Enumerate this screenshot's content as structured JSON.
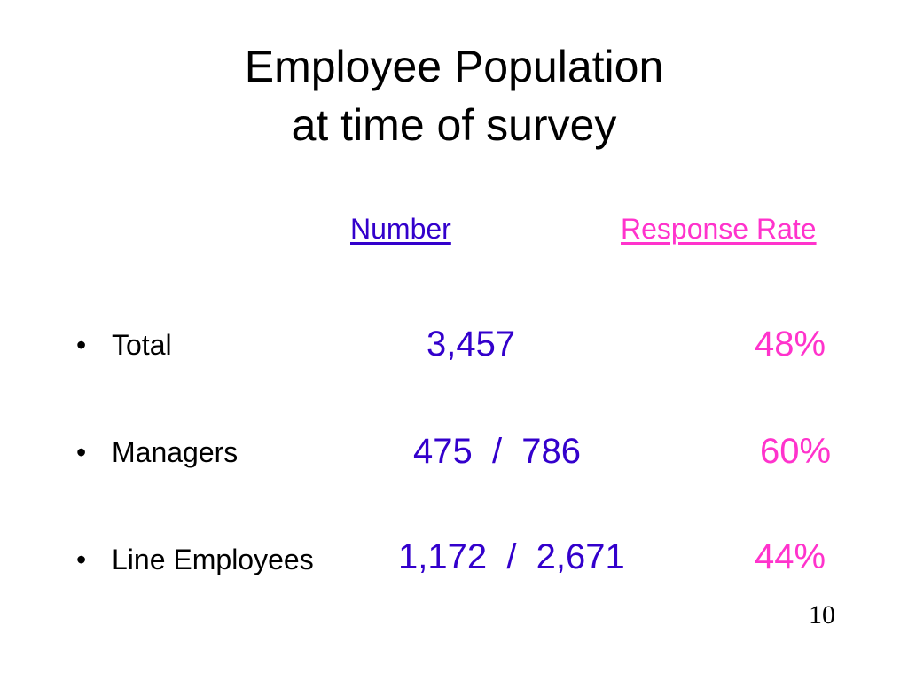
{
  "title": {
    "line1": "Employee Population",
    "line2": "at time of survey"
  },
  "headers": {
    "number": "Number",
    "response_rate": "Response Rate"
  },
  "rows": [
    {
      "label": "Total",
      "number": "3,457",
      "rate": "48%"
    },
    {
      "label": "Managers",
      "number": "475  /  786",
      "rate": "60%"
    },
    {
      "label": "Line Employees",
      "number": "1,172  /  2,671",
      "rate": "44%"
    }
  ],
  "bullet_symbol": "•",
  "page_number": "10",
  "colors": {
    "number": "#3300cc",
    "response_rate": "#ff33cc",
    "text": "#000000",
    "background": "#ffffff"
  }
}
